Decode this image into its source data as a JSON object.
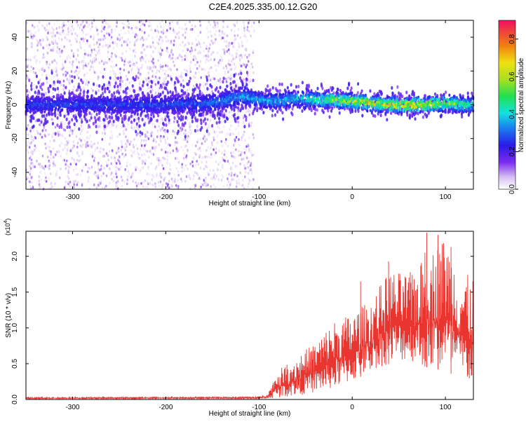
{
  "title": "C2E4.2025.335.00.12.G20",
  "chart_data": [
    {
      "type": "heatmap",
      "xlabel": "Height of straight line (km)",
      "ylabel": "Frequency (Hz)",
      "xlim": [
        -350,
        130
      ],
      "ylim": [
        -50,
        50
      ],
      "xticks": [
        -300,
        -200,
        -100,
        0,
        100
      ],
      "yticks": [
        -40,
        -20,
        0,
        20,
        40
      ],
      "colorbar": {
        "label": "Normalized spectral amplitude",
        "range": [
          0.0,
          0.9
        ],
        "ticks": [
          0.0,
          0.2,
          0.4,
          0.6,
          0.8
        ]
      },
      "band_center_hz": [
        {
          "x": -340,
          "y": 0
        },
        {
          "x": -300,
          "y": 0
        },
        {
          "x": -250,
          "y": 0
        },
        {
          "x": -200,
          "y": 0
        },
        {
          "x": -150,
          "y": 1
        },
        {
          "x": -120,
          "y": 5
        },
        {
          "x": -100,
          "y": 3
        },
        {
          "x": -80,
          "y": 2
        },
        {
          "x": -60,
          "y": 4
        },
        {
          "x": -40,
          "y": 3
        },
        {
          "x": -20,
          "y": 3
        },
        {
          "x": 0,
          "y": 2
        },
        {
          "x": 20,
          "y": 1
        },
        {
          "x": 40,
          "y": 0
        },
        {
          "x": 60,
          "y": 0
        },
        {
          "x": 80,
          "y": 0
        },
        {
          "x": 100,
          "y": 1
        },
        {
          "x": 120,
          "y": 0
        }
      ],
      "peak_amplitude": [
        {
          "x": -340,
          "v": 0.3
        },
        {
          "x": -200,
          "v": 0.3
        },
        {
          "x": -120,
          "v": 0.4
        },
        {
          "x": -100,
          "v": 0.4
        },
        {
          "x": -60,
          "v": 0.45
        },
        {
          "x": -20,
          "v": 0.65
        },
        {
          "x": 20,
          "v": 0.8
        },
        {
          "x": 60,
          "v": 0.85
        },
        {
          "x": 100,
          "v": 0.7
        },
        {
          "x": 130,
          "v": 0.5
        }
      ]
    },
    {
      "type": "line",
      "xlabel": "Height of straight line (km)",
      "ylabel": "SNR (10 * v/v)",
      "y_multiplier": "(x10",
      "y_multiplier_exp": "4",
      "y_multiplier_close": ")",
      "xlim": [
        -350,
        130
      ],
      "ylim": [
        0.0,
        2.35
      ],
      "xticks": [
        -300,
        -200,
        -100,
        0,
        100
      ],
      "yticks": [
        "0.0",
        "0.5",
        "1.0",
        "1.5",
        "2.0"
      ],
      "color": "#e8352f",
      "envelope": [
        {
          "x": -350,
          "min": 0.01,
          "max": 0.03
        },
        {
          "x": -100,
          "min": 0.01,
          "max": 0.04
        },
        {
          "x": -90,
          "min": 0.01,
          "max": 0.1
        },
        {
          "x": -80,
          "min": 0.03,
          "max": 0.4
        },
        {
          "x": -60,
          "min": 0.05,
          "max": 0.6
        },
        {
          "x": -40,
          "min": 0.1,
          "max": 0.8
        },
        {
          "x": -20,
          "min": 0.15,
          "max": 1.1
        },
        {
          "x": 0,
          "min": 0.25,
          "max": 1.2
        },
        {
          "x": 20,
          "min": 0.4,
          "max": 1.4
        },
        {
          "x": 40,
          "min": 0.5,
          "max": 1.8
        },
        {
          "x": 60,
          "min": 0.55,
          "max": 1.75
        },
        {
          "x": 80,
          "min": 0.45,
          "max": 2.0
        },
        {
          "x": 100,
          "min": 0.4,
          "max": 2.3
        },
        {
          "x": 115,
          "min": 0.3,
          "max": 1.8
        },
        {
          "x": 130,
          "min": 0.2,
          "max": 1.7
        }
      ],
      "spikes": [
        {
          "x": 9,
          "y": 1.65
        },
        {
          "x": 39,
          "y": 1.93
        },
        {
          "x": 78,
          "y": 2.05
        },
        {
          "x": 80,
          "y": 2.33
        },
        {
          "x": 92,
          "y": 2.3
        },
        {
          "x": 106,
          "y": 2.13
        }
      ]
    }
  ]
}
